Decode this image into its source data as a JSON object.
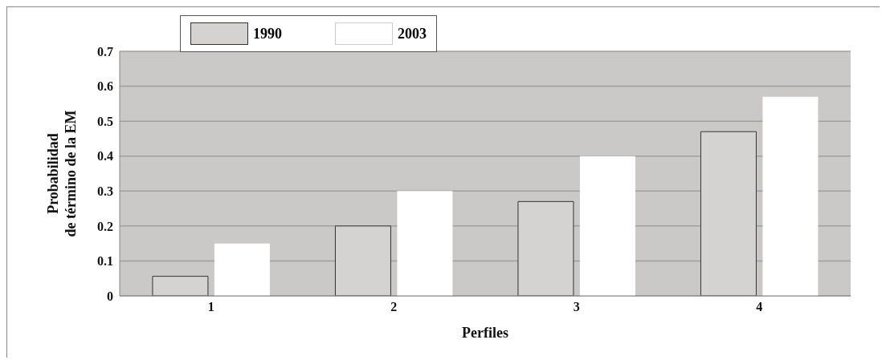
{
  "chart_data": {
    "type": "bar",
    "xlabel": "Perfiles",
    "ylabel": "Probabilidad\nde término de la EM",
    "categories": [
      "1",
      "2",
      "3",
      "4"
    ],
    "series": [
      {
        "name": "1990",
        "color": "#d4d3d1",
        "values": [
          0.056,
          0.2,
          0.27,
          0.47
        ]
      },
      {
        "name": "2003",
        "color": "#ffffff",
        "values": [
          0.15,
          0.3,
          0.4,
          0.57
        ]
      }
    ],
    "ylim": [
      0,
      0.7
    ],
    "yticks": [
      0,
      0.1,
      0.2,
      0.3,
      0.4,
      0.5,
      0.6,
      0.7
    ],
    "grid": "y",
    "legend": "top left"
  }
}
